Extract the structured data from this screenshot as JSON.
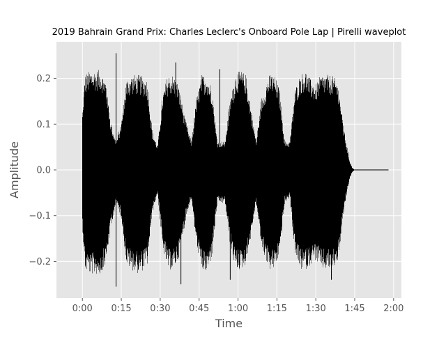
{
  "chart_data": {
    "type": "line",
    "title": "2019 Bahrain Grand Prix: Charles Leclerc's Onboard Pole Lap | Pirelli waveplot",
    "xlabel": "Time",
    "ylabel": "Amplitude",
    "x_unit": "seconds",
    "xlim": [
      -10,
      123
    ],
    "ylim": [
      -0.28,
      0.28
    ],
    "xticks": [
      {
        "value": 0,
        "label": "0:00"
      },
      {
        "value": 15,
        "label": "0:15"
      },
      {
        "value": 30,
        "label": "0:30"
      },
      {
        "value": 45,
        "label": "0:45"
      },
      {
        "value": 60,
        "label": "1:00"
      },
      {
        "value": 75,
        "label": "1:15"
      },
      {
        "value": 90,
        "label": "1:30"
      },
      {
        "value": 105,
        "label": "1:45"
      },
      {
        "value": 120,
        "label": "2:00"
      }
    ],
    "yticks": [
      {
        "value": -0.2,
        "label": "−0.2"
      },
      {
        "value": -0.1,
        "label": "−0.1"
      },
      {
        "value": 0.0,
        "label": "0.0"
      },
      {
        "value": 0.1,
        "label": "0.1"
      },
      {
        "value": 0.2,
        "label": "0.2"
      }
    ],
    "grid": true,
    "series": [
      {
        "color": "#000000",
        "envelope": {
          "t": [
            0,
            1,
            3,
            7,
            9,
            11,
            13,
            15,
            17,
            19,
            22,
            25,
            27,
            29,
            31,
            33,
            35,
            37,
            40,
            42,
            44,
            46,
            48,
            50,
            52,
            55,
            57,
            59,
            61,
            63,
            65,
            67,
            69,
            72,
            74,
            76,
            78,
            80,
            82,
            84,
            86,
            88,
            90,
            92,
            94,
            96,
            98,
            99,
            100,
            101,
            102,
            103,
            104,
            105,
            108,
            111,
            114,
            118
          ],
          "upper": [
            0.12,
            0.2,
            0.21,
            0.21,
            0.19,
            0.1,
            0.06,
            0.1,
            0.19,
            0.2,
            0.2,
            0.19,
            0.08,
            0.05,
            0.16,
            0.2,
            0.2,
            0.18,
            0.1,
            0.06,
            0.15,
            0.2,
            0.2,
            0.17,
            0.06,
            0.06,
            0.15,
            0.2,
            0.21,
            0.2,
            0.13,
            0.06,
            0.15,
            0.2,
            0.2,
            0.17,
            0.06,
            0.06,
            0.17,
            0.2,
            0.21,
            0.19,
            0.18,
            0.2,
            0.2,
            0.2,
            0.19,
            0.17,
            0.12,
            0.08,
            0.05,
            0.02,
            0.005,
            0.0,
            0.0,
            0.0,
            0.0,
            0.0
          ],
          "lower": [
            -0.12,
            -0.21,
            -0.22,
            -0.22,
            -0.2,
            -0.12,
            -0.07,
            -0.1,
            -0.2,
            -0.21,
            -0.22,
            -0.2,
            -0.09,
            -0.05,
            -0.17,
            -0.21,
            -0.21,
            -0.19,
            -0.1,
            -0.06,
            -0.16,
            -0.21,
            -0.22,
            -0.18,
            -0.07,
            -0.07,
            -0.16,
            -0.21,
            -0.21,
            -0.2,
            -0.14,
            -0.07,
            -0.16,
            -0.21,
            -0.21,
            -0.18,
            -0.07,
            -0.06,
            -0.18,
            -0.21,
            -0.21,
            -0.2,
            -0.19,
            -0.21,
            -0.21,
            -0.21,
            -0.2,
            -0.18,
            -0.13,
            -0.08,
            -0.05,
            -0.02,
            -0.005,
            0.0,
            0.0,
            0.0,
            0.0,
            0.0
          ]
        },
        "peaks": [
          {
            "t": 13,
            "y": 0.255
          },
          {
            "t": 13,
            "y": -0.255
          },
          {
            "t": 36,
            "y": 0.235
          },
          {
            "t": 38,
            "y": -0.25
          },
          {
            "t": 53,
            "y": 0.22
          },
          {
            "t": 57,
            "y": -0.24
          },
          {
            "t": 96,
            "y": -0.24
          }
        ],
        "end_time": 118
      }
    ]
  }
}
